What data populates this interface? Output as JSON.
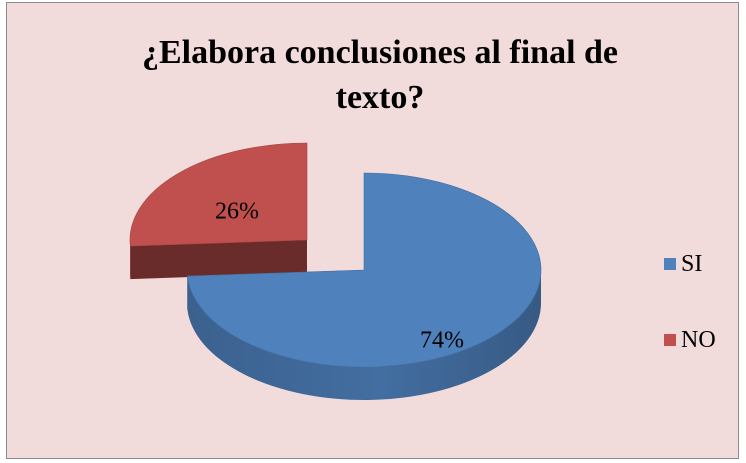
{
  "chart_data": {
    "type": "pie",
    "title": "¿Elabora conclusiones al final  de\ntexto?",
    "categories": [
      "SI",
      "NO"
    ],
    "values": [
      74,
      26
    ],
    "labels": [
      "74%",
      "26%"
    ],
    "colors": [
      "#4f81bd",
      "#c0504d"
    ],
    "style": "3d",
    "exploded": [
      "NO"
    ],
    "legend_position": "right"
  }
}
